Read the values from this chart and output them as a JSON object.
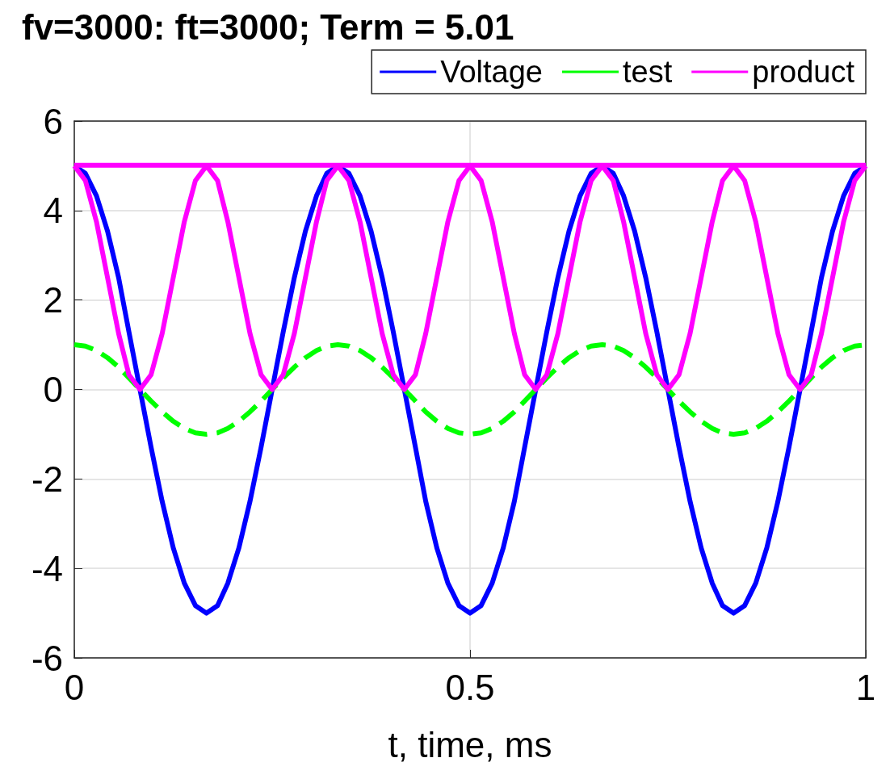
{
  "chart_data": {
    "type": "line",
    "title": "fv=3000: ft=3000; Term = 5.01",
    "xlabel": "t, time, ms",
    "x": [
      0,
      0.014,
      0.028,
      0.042,
      0.056,
      0.069,
      0.083,
      0.097,
      0.111,
      0.125,
      0.139,
      0.153,
      0.167,
      0.181,
      0.194,
      0.208,
      0.222,
      0.236,
      0.25,
      0.264,
      0.278,
      0.292,
      0.306,
      0.319,
      0.333,
      0.347,
      0.361,
      0.375,
      0.389,
      0.403,
      0.417,
      0.431,
      0.444,
      0.458,
      0.472,
      0.486,
      0.5,
      0.514,
      0.528,
      0.542,
      0.556,
      0.569,
      0.583,
      0.597,
      0.611,
      0.625,
      0.639,
      0.653,
      0.667,
      0.681,
      0.694,
      0.708,
      0.722,
      0.736,
      0.75,
      0.764,
      0.778,
      0.792,
      0.806,
      0.819,
      0.833,
      0.847,
      0.861,
      0.875,
      0.889,
      0.903,
      0.917,
      0.931,
      0.944,
      0.958,
      0.972,
      0.986,
      1
    ],
    "series": [
      {
        "name": "Voltage",
        "color": "#0000ff",
        "line_style": "solid",
        "values": [
          5,
          4.83,
          4.33,
          3.54,
          2.5,
          1.29,
          0,
          -1.29,
          -2.5,
          -3.54,
          -4.33,
          -4.83,
          -5,
          -4.83,
          -4.33,
          -3.54,
          -2.5,
          -1.29,
          0,
          1.29,
          2.5,
          3.54,
          4.33,
          4.83,
          5,
          4.83,
          4.33,
          3.54,
          2.5,
          1.29,
          0,
          -1.29,
          -2.5,
          -3.54,
          -4.33,
          -4.83,
          -5,
          -4.83,
          -4.33,
          -3.54,
          -2.5,
          -1.29,
          0,
          1.29,
          2.5,
          3.54,
          4.33,
          4.83,
          5,
          4.83,
          4.33,
          3.54,
          2.5,
          1.29,
          0,
          -1.29,
          -2.5,
          -3.54,
          -4.33,
          -4.83,
          -5,
          -4.83,
          -4.33,
          -3.54,
          -2.5,
          -1.29,
          0,
          1.29,
          2.5,
          3.54,
          4.33,
          4.83,
          5
        ]
      },
      {
        "name": "test",
        "color": "#00ff00",
        "line_style": "dashed",
        "values": [
          1,
          0.97,
          0.87,
          0.71,
          0.5,
          0.26,
          0,
          -0.26,
          -0.5,
          -0.71,
          -0.87,
          -0.97,
          -1,
          -0.97,
          -0.87,
          -0.71,
          -0.5,
          -0.26,
          0,
          0.26,
          0.5,
          0.71,
          0.87,
          0.97,
          1,
          0.97,
          0.87,
          0.71,
          0.5,
          0.26,
          0,
          -0.26,
          -0.5,
          -0.71,
          -0.87,
          -0.97,
          -1,
          -0.97,
          -0.87,
          -0.71,
          -0.5,
          -0.26,
          0,
          0.26,
          0.5,
          0.71,
          0.87,
          0.97,
          1,
          0.97,
          0.87,
          0.71,
          0.5,
          0.26,
          0,
          -0.26,
          -0.5,
          -0.71,
          -0.87,
          -0.97,
          -1,
          -0.97,
          -0.87,
          -0.71,
          -0.5,
          -0.26,
          0,
          0.26,
          0.5,
          0.71,
          0.87,
          0.97,
          1
        ]
      },
      {
        "name": "product",
        "color": "#ff00ff",
        "line_style": "solid",
        "values": [
          5,
          4.67,
          3.75,
          2.5,
          1.25,
          0.33,
          0,
          0.33,
          1.25,
          2.5,
          3.75,
          4.67,
          5,
          4.67,
          3.75,
          2.5,
          1.25,
          0.33,
          0,
          0.33,
          1.25,
          2.5,
          3.75,
          4.67,
          5,
          4.67,
          3.75,
          2.5,
          1.25,
          0.33,
          0,
          0.33,
          1.25,
          2.5,
          3.75,
          4.67,
          5,
          4.67,
          3.75,
          2.5,
          1.25,
          0.33,
          0,
          0.33,
          1.25,
          2.5,
          3.75,
          4.67,
          5,
          4.67,
          3.75,
          2.5,
          1.25,
          0.33,
          0,
          0.33,
          1.25,
          2.5,
          3.75,
          4.67,
          5,
          4.67,
          3.75,
          2.5,
          1.25,
          0.33,
          0,
          0.33,
          1.25,
          2.5,
          3.75,
          4.67,
          5
        ]
      },
      {
        "color": "#ff00ff",
        "line_style": "solid",
        "x": [
          0,
          1
        ],
        "values": [
          5.01,
          5.01
        ]
      }
    ],
    "xlim": [
      0,
      1
    ],
    "xticks": [
      0,
      0.5,
      1
    ],
    "ylim": [
      -6,
      6
    ],
    "yticks": [
      -6,
      -4,
      -2,
      0,
      2,
      4,
      6
    ],
    "grid": true,
    "legend": "top right",
    "marker": "none"
  }
}
